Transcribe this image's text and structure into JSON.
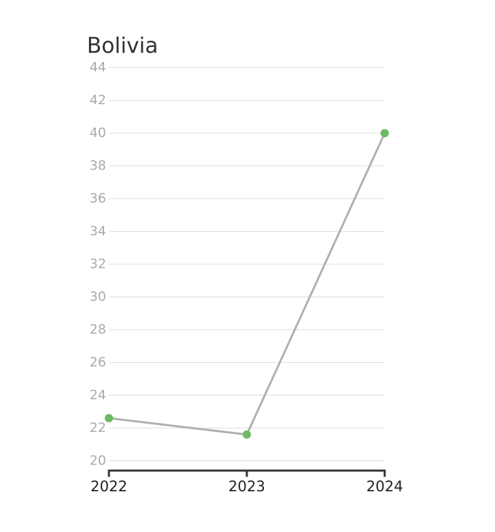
{
  "chart_data": {
    "type": "line",
    "title": "Bolivia",
    "x": [
      2022,
      2023,
      2024
    ],
    "xlim": [
      2022,
      2024
    ],
    "xticks": [
      2022,
      2023,
      2024
    ],
    "series": [
      {
        "name": "Bolivia",
        "color": "#b0b0b0",
        "marker_color": "#6cb966",
        "values": [
          22.6,
          21.6,
          40
        ]
      }
    ],
    "ylim": [
      19.4,
      44
    ],
    "yticks": [
      20,
      22,
      24,
      26,
      28,
      30,
      32,
      34,
      36,
      38,
      40,
      42,
      44
    ],
    "grid": true
  }
}
